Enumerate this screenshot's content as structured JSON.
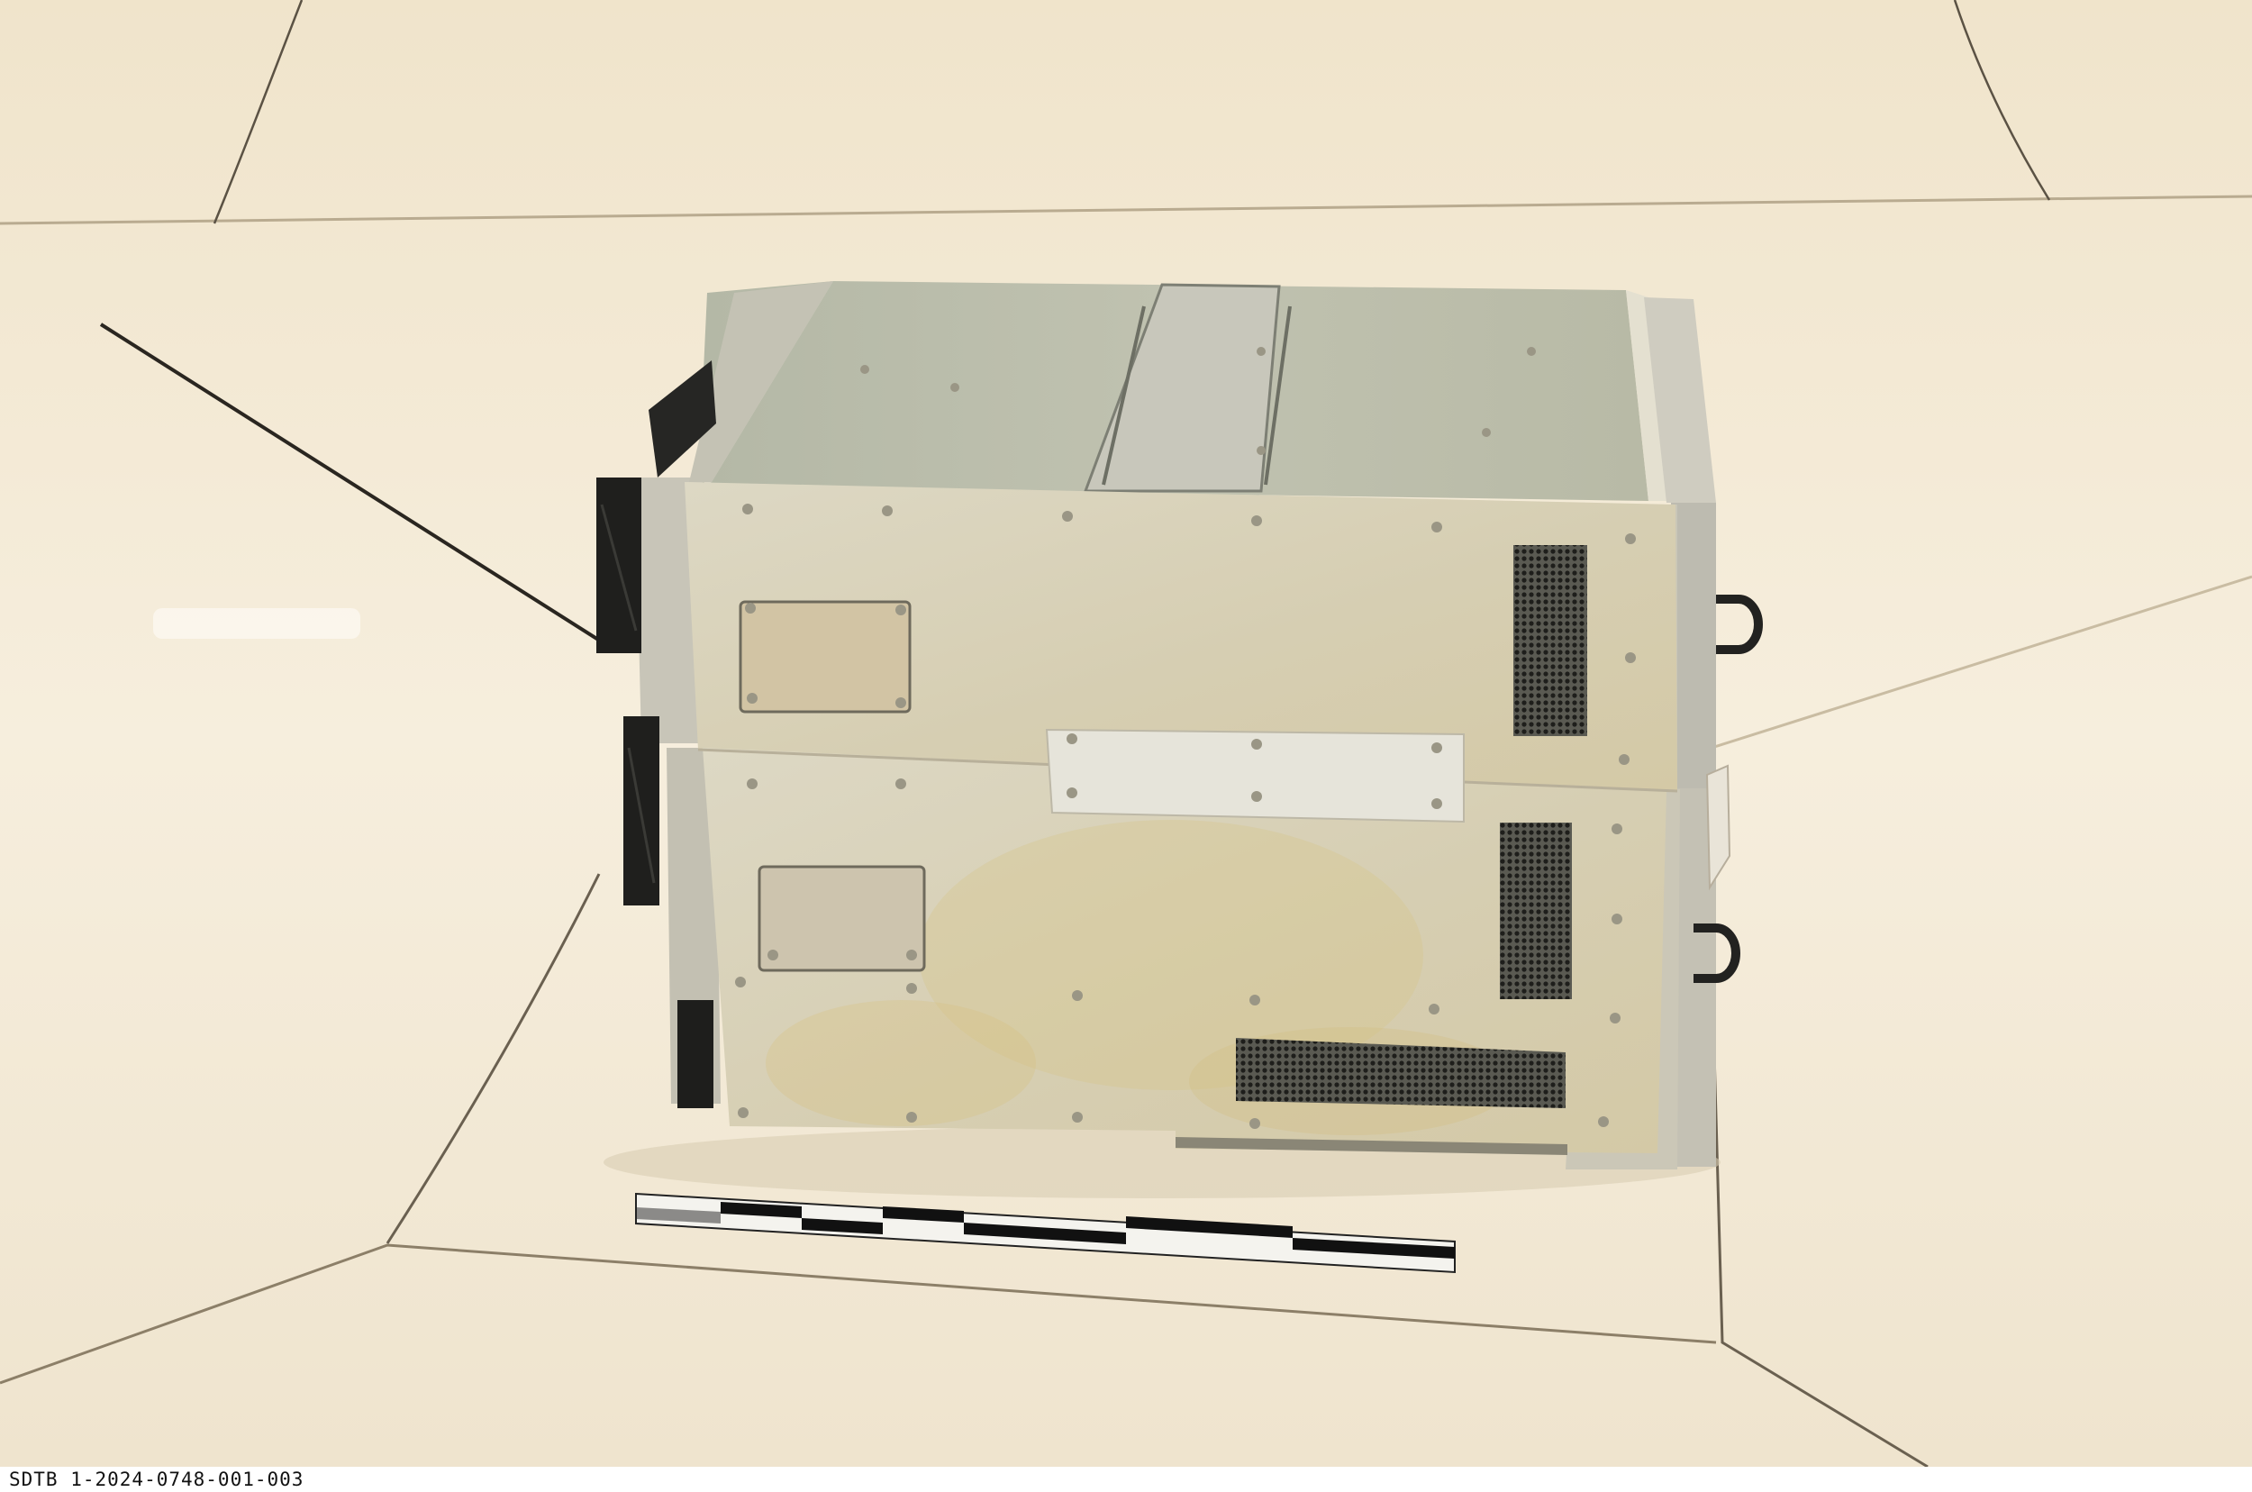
{
  "caption": "SDTB 1-2024-0748-001-003",
  "colors": {
    "background": "#f2e8d4",
    "panel": "#d8d2bc",
    "top": "#bcbfae",
    "vent": "#3a3a36",
    "fan": "#1f1f1d"
  }
}
